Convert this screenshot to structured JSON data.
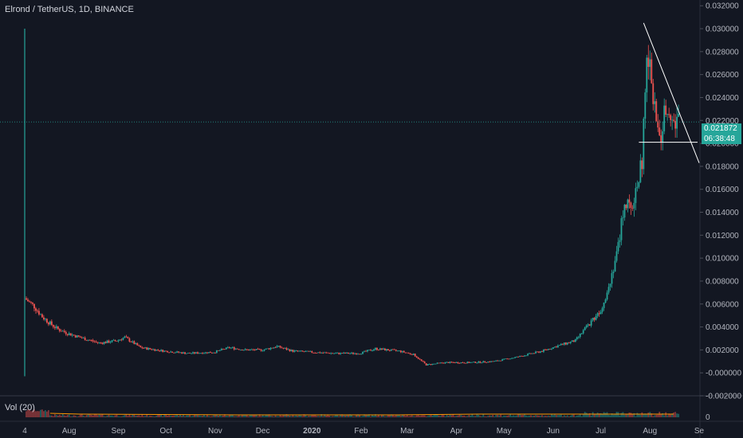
{
  "legend": {
    "symbol_line": "Elrond / TetherUS, 1D, BINANCE"
  },
  "volume": {
    "label": "Vol (20)",
    "axis_ticks": [
      "0"
    ]
  },
  "last_price": {
    "value": "0.021872",
    "countdown": "06:38:48"
  },
  "colors": {
    "background": "#131722",
    "up": "#26a69a",
    "down": "#ef5350",
    "grid": "#1e222d",
    "axis_text": "#b2b5be",
    "volume_ma": "#ff9800"
  },
  "chart_data": {
    "type": "candlestick",
    "title": "Elrond / TetherUS, 1D, BINANCE",
    "xlabel": "",
    "ylabel": "",
    "ylim": [
      -0.002,
      0.0325
    ],
    "y_ticks": [
      "0.032000",
      "0.030000",
      "0.028000",
      "0.026000",
      "0.024000",
      "0.022000",
      "0.020000",
      "0.018000",
      "0.016000",
      "0.014000",
      "0.012000",
      "0.010000",
      "0.008000",
      "0.006000",
      "0.004000",
      "0.002000",
      "-0.000000",
      "-0.002000"
    ],
    "x_ticks": [
      "4",
      "Aug",
      "Sep",
      "Oct",
      "Nov",
      "Dec",
      "2020",
      "Feb",
      "Mar",
      "Apr",
      "May",
      "Jun",
      "Jul",
      "Aug",
      "Se"
    ],
    "price_series": [
      [
        "2019-07-04",
        0.0065
      ],
      [
        "2019-07-10",
        0.0058
      ],
      [
        "2019-07-15",
        0.0049
      ],
      [
        "2019-07-20",
        0.0043
      ],
      [
        "2019-07-25",
        0.0038
      ],
      [
        "2019-08-01",
        0.0034
      ],
      [
        "2019-08-10",
        0.003
      ],
      [
        "2019-08-20",
        0.0026
      ],
      [
        "2019-08-31",
        0.0028
      ],
      [
        "2019-09-05",
        0.0031
      ],
      [
        "2019-09-15",
        0.0022
      ],
      [
        "2019-09-30",
        0.0019
      ],
      [
        "2019-10-15",
        0.0017
      ],
      [
        "2019-10-31",
        0.0018
      ],
      [
        "2019-11-10",
        0.0022
      ],
      [
        "2019-11-20",
        0.002
      ],
      [
        "2019-12-01",
        0.002
      ],
      [
        "2019-12-10",
        0.0023
      ],
      [
        "2019-12-20",
        0.0019
      ],
      [
        "2020-01-01",
        0.0018
      ],
      [
        "2020-01-15",
        0.0017
      ],
      [
        "2020-01-31",
        0.0017
      ],
      [
        "2020-02-10",
        0.0021
      ],
      [
        "2020-02-25",
        0.0019
      ],
      [
        "2020-03-05",
        0.0016
      ],
      [
        "2020-03-13",
        0.0007
      ],
      [
        "2020-03-25",
        0.0009
      ],
      [
        "2020-04-10",
        0.0009
      ],
      [
        "2020-04-25",
        0.001
      ],
      [
        "2020-05-10",
        0.0014
      ],
      [
        "2020-05-25",
        0.0019
      ],
      [
        "2020-06-05",
        0.0024
      ],
      [
        "2020-06-15",
        0.0028
      ],
      [
        "2020-06-25",
        0.0045
      ],
      [
        "2020-07-01",
        0.0055
      ],
      [
        "2020-07-06",
        0.0075
      ],
      [
        "2020-07-12",
        0.011
      ],
      [
        "2020-07-16",
        0.015
      ],
      [
        "2020-07-20",
        0.014
      ],
      [
        "2020-07-24",
        0.0165
      ],
      [
        "2020-07-27",
        0.0185
      ],
      [
        "2020-07-30",
        0.027
      ],
      [
        "2020-08-02",
        0.026
      ],
      [
        "2020-08-05",
        0.0215
      ],
      [
        "2020-08-08",
        0.0205
      ],
      [
        "2020-08-11",
        0.0235
      ],
      [
        "2020-08-14",
        0.023
      ],
      [
        "2020-08-17",
        0.0215
      ],
      [
        "2020-08-19",
        0.0219
      ]
    ],
    "initial_spike": {
      "date": "2019-07-04",
      "high": 0.03,
      "low": -0.0003
    },
    "last_price": 0.021872,
    "horizontal_price_line": 0.021872,
    "drawings": [
      {
        "type": "trendline",
        "from": [
          "2020-07-28",
          0.0305
        ],
        "to": [
          "2020-09-01",
          0.0183
        ]
      },
      {
        "type": "horizontal_segment",
        "price": 0.0201,
        "from": "2020-07-25",
        "to": "2020-08-31"
      }
    ],
    "volume": {
      "max": 1,
      "note_values": "relative"
    }
  }
}
